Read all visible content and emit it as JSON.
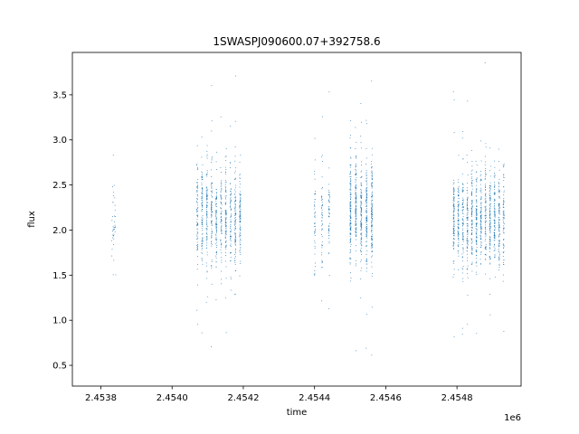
{
  "chart_data": {
    "type": "scatter",
    "title": "1SWASPJ090600.07+392758.6",
    "xlabel": "time",
    "ylabel": "flux",
    "x_offset_label": "1e6",
    "xlim": [
      2.45372,
      2.45498
    ],
    "ylim": [
      0.27,
      3.97
    ],
    "xticks": [
      2.4538,
      2.454,
      2.4542,
      2.4544,
      2.4546,
      2.4548
    ],
    "xtick_labels": [
      "2.4538",
      "2.4540",
      "2.4542",
      "2.4544",
      "2.4546",
      "2.4548"
    ],
    "yticks": [
      0.5,
      1.0,
      1.5,
      2.0,
      2.5,
      3.0,
      3.5
    ],
    "ytick_labels": [
      "0.5",
      "1.0",
      "1.5",
      "2.0",
      "2.5",
      "3.0",
      "3.5"
    ],
    "grid": false,
    "marker_color": "#1f77b4",
    "series": [
      {
        "clusters": [
          {
            "x_start": 2.45383,
            "x_end": 2.45384,
            "y_center": 2.05,
            "y_spread": 0.32,
            "count": 40
          },
          {
            "x_start": 2.45407,
            "x_end": 2.45419,
            "y_center": 2.15,
            "y_spread": 0.38,
            "count": 900
          },
          {
            "x_start": 2.4544,
            "x_end": 2.45444,
            "y_center": 2.15,
            "y_spread": 0.35,
            "count": 150
          },
          {
            "x_start": 2.4545,
            "x_end": 2.45456,
            "y_center": 2.2,
            "y_spread": 0.38,
            "count": 700
          },
          {
            "x_start": 2.45479,
            "x_end": 2.45493,
            "y_center": 2.1,
            "y_spread": 0.36,
            "count": 1200
          }
        ]
      }
    ]
  }
}
